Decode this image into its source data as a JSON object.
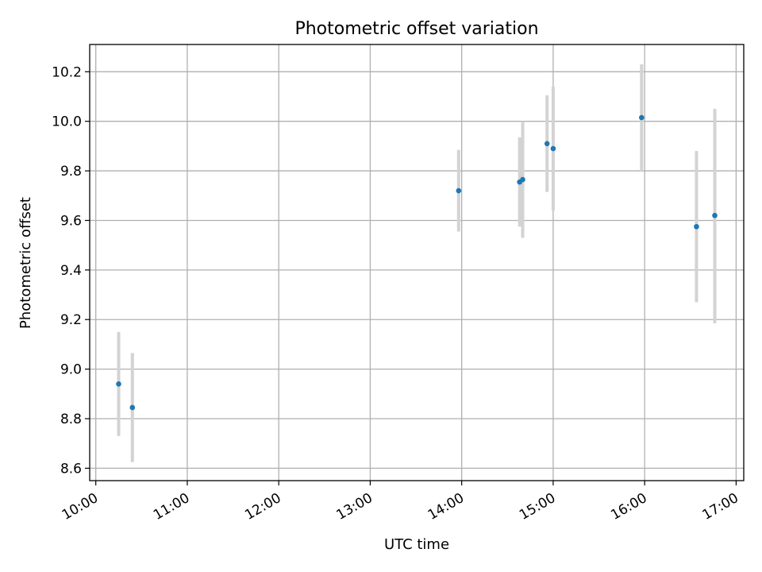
{
  "chart_data": {
    "type": "scatter",
    "title": "Photometric offset variation",
    "xlabel": "UTC time",
    "ylabel": "Photometric offset",
    "grid": true,
    "x_ticks": [
      "10:00",
      "11:00",
      "12:00",
      "13:00",
      "14:00",
      "15:00",
      "16:00",
      "17:00"
    ],
    "y_ticks": [
      "8.6",
      "8.8",
      "9.0",
      "9.2",
      "9.4",
      "9.6",
      "9.8",
      "10.0",
      "10.2"
    ],
    "xlim": [
      "09:56",
      "17:05"
    ],
    "ylim": [
      8.55,
      10.31
    ],
    "marker_color": "#1f77b4",
    "errorbar_color": "#d3d3d3",
    "points": [
      {
        "time": "10:15",
        "y": 8.94,
        "yerr_low": 8.73,
        "yerr_high": 9.15
      },
      {
        "time": "10:24",
        "y": 8.845,
        "yerr_low": 8.625,
        "yerr_high": 9.065
      },
      {
        "time": "13:58",
        "y": 9.72,
        "yerr_low": 9.555,
        "yerr_high": 9.885
      },
      {
        "time": "14:38",
        "y": 9.755,
        "yerr_low": 9.575,
        "yerr_high": 9.935
      },
      {
        "time": "14:40",
        "y": 9.765,
        "yerr_low": 9.53,
        "yerr_high": 10.0
      },
      {
        "time": "14:56",
        "y": 9.91,
        "yerr_low": 9.715,
        "yerr_high": 10.105
      },
      {
        "time": "15:00",
        "y": 9.89,
        "yerr_low": 9.64,
        "yerr_high": 10.14
      },
      {
        "time": "15:58",
        "y": 10.015,
        "yerr_low": 9.8,
        "yerr_high": 10.23
      },
      {
        "time": "16:34",
        "y": 9.575,
        "yerr_low": 9.27,
        "yerr_high": 9.88
      },
      {
        "time": "16:46",
        "y": 9.62,
        "yerr_low": 9.185,
        "yerr_high": 10.05
      }
    ]
  }
}
